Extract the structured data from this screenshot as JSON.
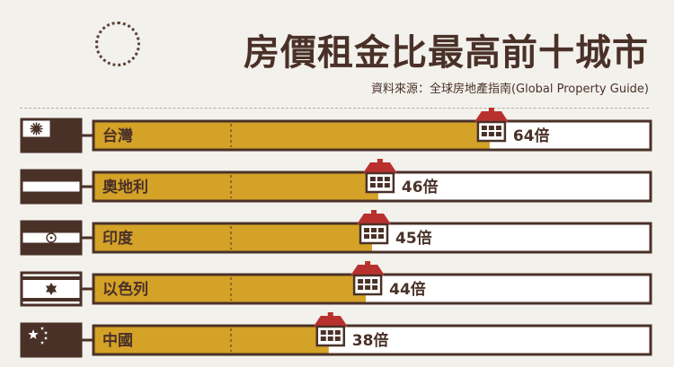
{
  "title": "房價租金比最高前十城市",
  "source": "資料來源：全球房地產指南(Global Property Guide)",
  "colors": {
    "bar": "#d4a227",
    "frame": "#4a3128",
    "house_roof": "#b9312e",
    "background": "#f3f1ec"
  },
  "chart_data": {
    "type": "bar",
    "orientation": "horizontal",
    "categories": [
      "台灣",
      "奧地利",
      "印度",
      "以色列",
      "中國"
    ],
    "values": [
      64,
      46,
      45,
      44,
      38
    ],
    "value_suffix": "倍",
    "xlim": [
      0,
      90
    ],
    "flags": [
      "taiwan-flag-icon",
      "austria-flag-icon",
      "india-flag-icon",
      "israel-flag-icon",
      "china-flag-icon"
    ]
  }
}
